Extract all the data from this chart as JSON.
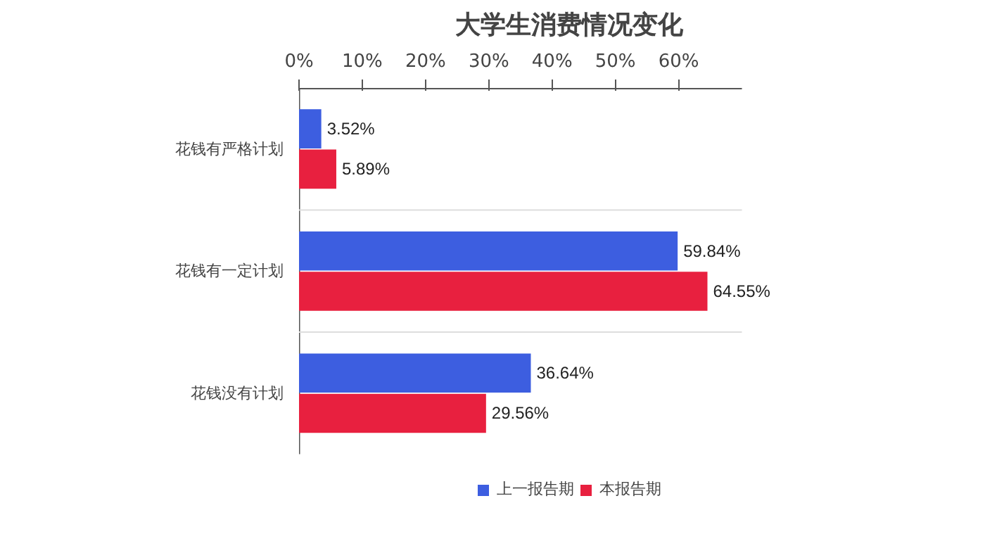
{
  "chart_data": {
    "type": "bar",
    "orientation": "horizontal",
    "title": "大学生消费情况变化",
    "categories": [
      "花钱有严格计划",
      "花钱有一定计划",
      "花钱没有计划"
    ],
    "series": [
      {
        "name": "上一报告期",
        "color": "#3d5ee0",
        "values": [
          3.52,
          59.84,
          36.64
        ],
        "value_labels": [
          "3.52%",
          "59.84%",
          "36.64%"
        ]
      },
      {
        "name": "本报告期",
        "color": "#e8203f",
        "values": [
          5.89,
          64.55,
          29.56
        ],
        "value_labels": [
          "5.89%",
          "64.55%",
          "29.56%"
        ]
      }
    ],
    "xlim": [
      0,
      70
    ],
    "xticks": [
      {
        "value": 0,
        "label": "0%"
      },
      {
        "value": 10,
        "label": "10%"
      },
      {
        "value": 20,
        "label": "20%"
      },
      {
        "value": 30,
        "label": "30%"
      },
      {
        "value": 40,
        "label": "40%"
      },
      {
        "value": 50,
        "label": "50%"
      },
      {
        "value": 60,
        "label": "60%"
      }
    ],
    "grid": "y",
    "legend": "bottom"
  }
}
